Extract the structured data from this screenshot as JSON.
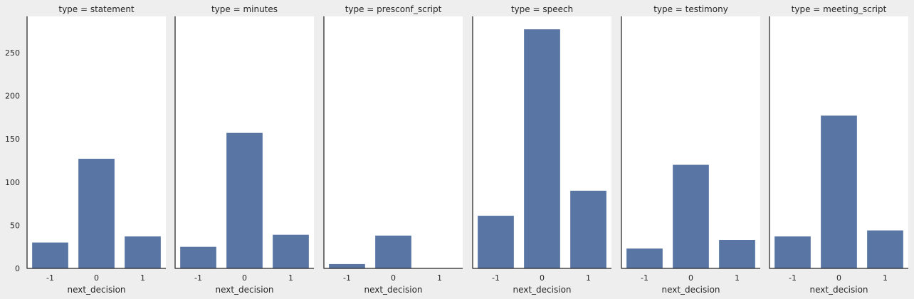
{
  "chart_data": {
    "type": "bar",
    "bar_color": "#5875a4",
    "panel_background": "#ffffff",
    "figure_background": "#eeeeee",
    "grid": false,
    "ylim": [
      0,
      292
    ],
    "yticks": [
      0,
      50,
      100,
      150,
      200,
      250
    ],
    "categories": [
      "-1",
      "0",
      "1"
    ],
    "panels": [
      {
        "title": "type = statement",
        "xlabel": "next_decision",
        "values": [
          30,
          127,
          37
        ]
      },
      {
        "title": "type = minutes",
        "xlabel": "next_decision",
        "values": [
          25,
          157,
          39
        ]
      },
      {
        "title": "type = presconf_script",
        "xlabel": "next_decision",
        "values": [
          5,
          38,
          0
        ]
      },
      {
        "title": "type = speech",
        "xlabel": "next_decision",
        "values": [
          61,
          277,
          90
        ]
      },
      {
        "title": "type = testimony",
        "xlabel": "next_decision",
        "values": [
          23,
          120,
          33
        ]
      },
      {
        "title": "type = meeting_script",
        "xlabel": "next_decision",
        "values": [
          37,
          177,
          44
        ]
      }
    ]
  }
}
